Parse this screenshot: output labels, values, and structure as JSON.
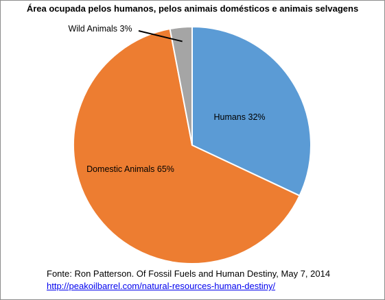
{
  "chart_data": {
    "type": "pie",
    "title": "Área ocupada pelos humanos, pelos animais domésticos e animais selvagens",
    "slices": [
      {
        "label": "Humans 32%",
        "value": 32,
        "color": "#5b9bd5"
      },
      {
        "label": "Domestic Animals 65%",
        "value": 65,
        "color": "#ed7d31"
      },
      {
        "label": "Wild Animals 3%",
        "value": 3,
        "color": "#a5a5a5"
      }
    ],
    "start": "top",
    "direction": "clockwise",
    "legend": "none",
    "border_color": "#ffffff"
  },
  "source": {
    "text": "Fonte: Ron Patterson. Of Fossil Fuels and Human Destiny,  May 7, 2014",
    "link": "http://peakoilbarrel.com/natural-resources-human-destiny/"
  }
}
